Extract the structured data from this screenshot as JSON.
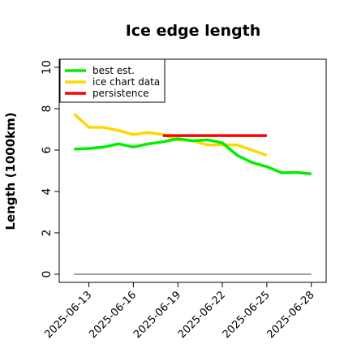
{
  "chart_data": {
    "type": "line",
    "title": "Ice edge length",
    "xlabel": "",
    "ylabel": "Length (1000km)",
    "ylim": [
      0,
      10
    ],
    "yticks": [
      0,
      2,
      4,
      6,
      8,
      10
    ],
    "xlim": [
      "2025-06-11",
      "2025-06-29"
    ],
    "xticks": [
      "2025-06-13",
      "2025-06-16",
      "2025-06-19",
      "2025-06-22",
      "2025-06-25",
      "2025-06-28"
    ],
    "grid": false,
    "legend_position": "top-left",
    "series": [
      {
        "name": "best est.",
        "color": "#00ee00",
        "x": [
          "2025-06-12",
          "2025-06-13",
          "2025-06-14",
          "2025-06-15",
          "2025-06-16",
          "2025-06-17",
          "2025-06-18",
          "2025-06-19",
          "2025-06-20",
          "2025-06-21",
          "2025-06-22",
          "2025-06-23",
          "2025-06-24",
          "2025-06-25",
          "2025-06-26",
          "2025-06-27",
          "2025-06-28"
        ],
        "y": [
          6.05,
          6.08,
          6.15,
          6.3,
          6.15,
          6.3,
          6.4,
          6.55,
          6.45,
          6.5,
          6.35,
          5.75,
          5.4,
          5.2,
          4.9,
          4.92,
          4.85
        ]
      },
      {
        "name": "ice chart data",
        "color": "#ffd700",
        "x": [
          "2025-06-12",
          "2025-06-13",
          "2025-06-14",
          "2025-06-15",
          "2025-06-16",
          "2025-06-17",
          "2025-06-18",
          "2025-06-19",
          "2025-06-20",
          "2025-06-21",
          "2025-06-22",
          "2025-06-23",
          "2025-06-24",
          "2025-06-25"
        ],
        "y": [
          7.75,
          7.1,
          7.1,
          6.95,
          6.75,
          6.85,
          6.75,
          6.5,
          6.45,
          6.25,
          6.25,
          6.25,
          6.0,
          5.75
        ]
      },
      {
        "name": "persistence",
        "color": "#ff0000",
        "x": [
          "2025-06-18",
          "2025-06-25"
        ],
        "y": [
          6.7,
          6.7
        ]
      },
      {
        "name": "",
        "color": "#808080",
        "x": [
          "2025-06-12",
          "2025-06-28"
        ],
        "y": [
          0,
          0
        ]
      }
    ]
  }
}
